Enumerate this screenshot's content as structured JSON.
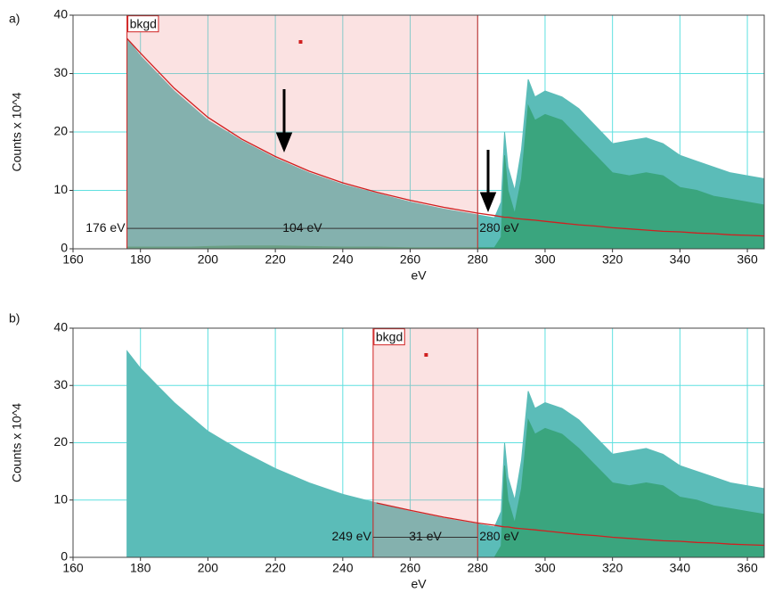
{
  "chart_data": [
    {
      "type": "area",
      "panel_label": "a)",
      "xlabel": "eV",
      "ylabel": "Counts x 10^4",
      "xlim": [
        160,
        365
      ],
      "ylim": [
        0,
        40
      ],
      "xticks": [
        160,
        180,
        200,
        220,
        240,
        260,
        280,
        300,
        320,
        340,
        360
      ],
      "yticks": [
        0,
        10,
        20,
        30,
        40
      ],
      "grid": true,
      "x": [
        176,
        180,
        185,
        190,
        195,
        200,
        210,
        220,
        230,
        240,
        250,
        260,
        270,
        280,
        285,
        287,
        288,
        289,
        291,
        293,
        295,
        297,
        300,
        305,
        310,
        315,
        320,
        325,
        330,
        335,
        340,
        345,
        350,
        355,
        360,
        365
      ],
      "series": [
        {
          "kind": "area",
          "color": "#5bbcb8",
          "values": [
            36,
            33,
            30,
            27,
            24.5,
            22,
            18.5,
            15.5,
            13,
            11,
            9.5,
            8,
            6.8,
            5.8,
            5.3,
            8,
            20,
            14,
            10,
            17,
            29,
            26,
            27,
            26,
            24,
            21,
            18,
            18.5,
            19,
            18,
            16,
            15,
            14,
            13,
            12.5,
            12
          ]
        },
        {
          "kind": "area",
          "color": "#3aa57e",
          "values": [
            0.3,
            0.3,
            0.3,
            0.3,
            0.3,
            0.4,
            0.5,
            0.5,
            0.4,
            0.3,
            0.3,
            0.2,
            0.2,
            0.2,
            0.2,
            2,
            16,
            10,
            6,
            12,
            24.5,
            22,
            23,
            22,
            19,
            16,
            13,
            12.5,
            13,
            12.5,
            10.5,
            10,
            9,
            8.5,
            8,
            7.5
          ]
        },
        {
          "kind": "line",
          "color": "#d02020",
          "values": [
            36,
            33.5,
            30.5,
            27.5,
            25,
            22.5,
            18.8,
            15.8,
            13.3,
            11.3,
            9.7,
            8.3,
            7.1,
            6.1,
            5.7,
            5.5,
            5.4,
            5.4,
            5.2,
            5.1,
            5,
            4.9,
            4.7,
            4.4,
            4.1,
            3.9,
            3.6,
            3.4,
            3.2,
            3,
            2.9,
            2.7,
            2.6,
            2.4,
            2.3,
            2.2
          ]
        }
      ],
      "window": {
        "label": "bkgd",
        "start": {
          "value": 176,
          "label": "176 eV"
        },
        "end": {
          "value": 280,
          "label": "280 eV"
        },
        "width": {
          "value": 104,
          "label": "104 eV"
        }
      }
    },
    {
      "type": "area",
      "panel_label": "b)",
      "xlabel": "eV",
      "ylabel": "Counts x 10^4",
      "xlim": [
        160,
        365
      ],
      "ylim": [
        0,
        40
      ],
      "xticks": [
        160,
        180,
        200,
        220,
        240,
        260,
        280,
        300,
        320,
        340,
        360
      ],
      "yticks": [
        0,
        10,
        20,
        30,
        40
      ],
      "grid": true,
      "x": [
        176,
        180,
        185,
        190,
        195,
        200,
        210,
        220,
        230,
        240,
        250,
        260,
        270,
        280,
        285,
        287,
        288,
        289,
        291,
        293,
        295,
        297,
        300,
        305,
        310,
        315,
        320,
        325,
        330,
        335,
        340,
        345,
        350,
        355,
        360,
        365
      ],
      "series": [
        {
          "kind": "area",
          "color": "#5bbcb8",
          "values": [
            36,
            33,
            30,
            27,
            24.5,
            22,
            18.5,
            15.5,
            13,
            11,
            9.5,
            8,
            6.8,
            5.8,
            5.3,
            8,
            20,
            14,
            10,
            17,
            29,
            26,
            27,
            26,
            24,
            21,
            18,
            18.5,
            19,
            18,
            16,
            15,
            14,
            13,
            12.5,
            12
          ]
        },
        {
          "kind": "area",
          "color": "#3aa57e",
          "values": [
            0,
            0,
            0,
            0,
            0,
            0,
            0,
            0,
            0,
            0,
            0,
            0,
            0,
            0,
            0,
            2,
            16,
            10,
            6,
            12,
            24,
            21.5,
            22.5,
            21.5,
            19,
            16,
            13,
            12.5,
            13,
            12.5,
            10.5,
            10,
            9,
            8.5,
            8,
            7.5
          ]
        },
        {
          "kind": "line",
          "color": "#d02020",
          "values": [
            null,
            null,
            null,
            null,
            null,
            null,
            null,
            null,
            null,
            null,
            9.5,
            8.2,
            7,
            6,
            5.6,
            5.4,
            5.3,
            5.3,
            5.1,
            5,
            4.9,
            4.8,
            4.6,
            4.3,
            4,
            3.8,
            3.5,
            3.3,
            3.1,
            2.9,
            2.8,
            2.6,
            2.5,
            2.3,
            2.2,
            2.1
          ]
        }
      ],
      "window": {
        "label": "bkgd",
        "start": {
          "value": 249,
          "label": "249 eV"
        },
        "end": {
          "value": 280,
          "label": "280 eV"
        },
        "width": {
          "value": 31,
          "label": "31 eV"
        }
      }
    }
  ]
}
